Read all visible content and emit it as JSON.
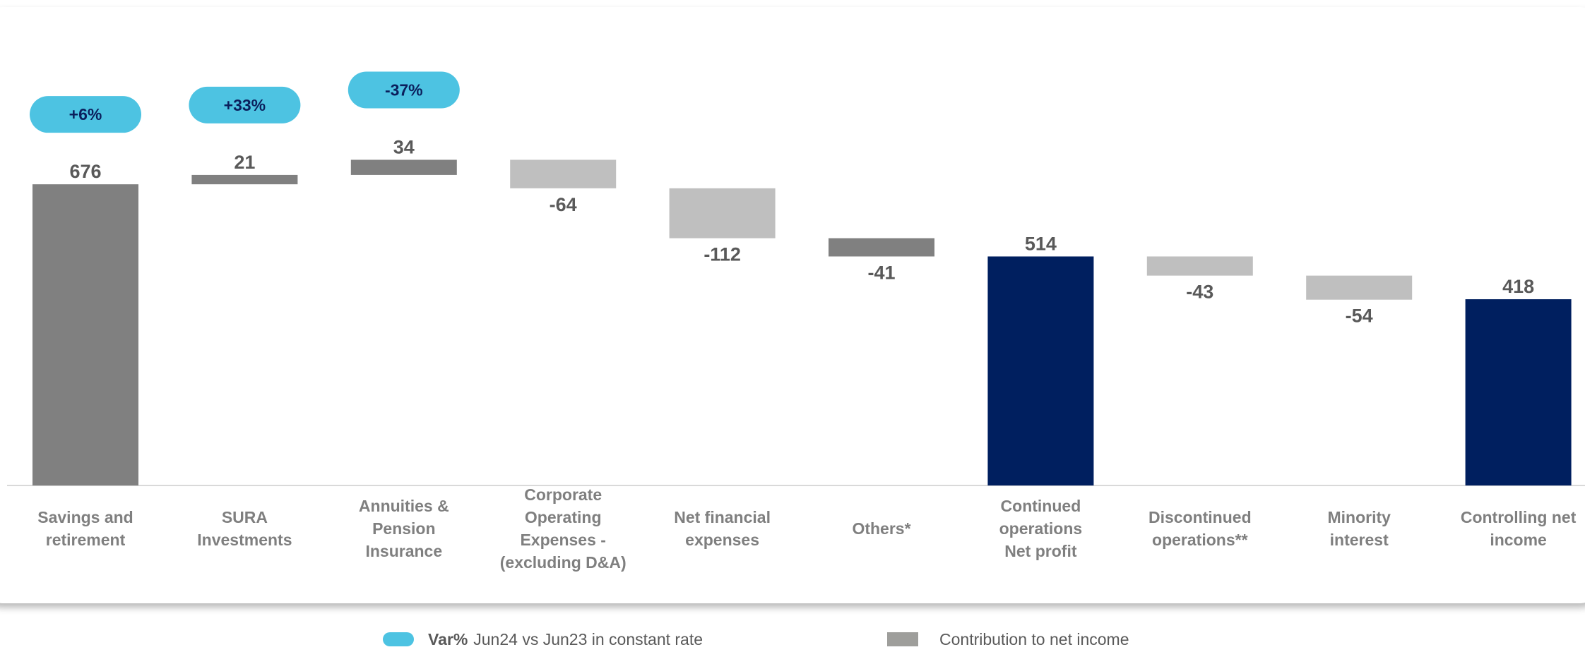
{
  "chart_data": {
    "type": "waterfall",
    "categories": [
      "Savings and retirement",
      "SURA Investments",
      "Annuities & Pension Insurance",
      "Corporate Operating Expenses - (excluding D&A)",
      "Net financial expenses",
      "Others*",
      "Continued operations Net profit",
      "Discontinued operations**",
      "Minority interest",
      "Controlling net income"
    ],
    "category_lines": [
      [
        "Savings and",
        "retirement"
      ],
      [
        "SURA",
        "Investments"
      ],
      [
        "Annuities &",
        "Pension",
        "Insurance"
      ],
      [
        "Corporate",
        "Operating",
        "Expenses -",
        "(excluding D&A)"
      ],
      [
        "Net financial",
        "expenses"
      ],
      [
        "Others*"
      ],
      [
        "Continued",
        "operations",
        "Net profit"
      ],
      [
        "Discontinued",
        "operations**"
      ],
      [
        "Minority",
        "interest"
      ],
      [
        "Controlling net",
        "income"
      ]
    ],
    "values": [
      676,
      21,
      34,
      -64,
      -112,
      -41,
      514,
      -43,
      -54,
      418
    ],
    "value_labels": [
      "676",
      "21",
      "34",
      "-64",
      "-112",
      "-41",
      "514",
      "-43",
      "-54",
      "418"
    ],
    "bar_kind": [
      "total",
      "delta",
      "delta",
      "delta",
      "delta",
      "delta",
      "total",
      "delta",
      "delta",
      "total"
    ],
    "variation_badges": [
      {
        "index": 0,
        "label": "+6%"
      },
      {
        "index": 1,
        "label": "+33%"
      },
      {
        "index": 2,
        "label": "-37%"
      }
    ],
    "legend": [
      {
        "bold": "Var%",
        "text": "Jun24 vs Jun23 in constant rate",
        "shape": "pill"
      },
      {
        "bold": "",
        "text": "Contribution to net income",
        "shape": "square"
      }
    ],
    "colors": {
      "savings": "#808080",
      "positive_delta": "#808080",
      "negative_light": "#bfbfbf",
      "others_dark": "#808080",
      "total_navy": "#001f5f",
      "badge": "#4dc3e2",
      "badge_text": "#0b1f5c",
      "value_text": "#595959",
      "category_text": "#7f7f7f",
      "legend_square": "#9e9e9b"
    },
    "bar_colors": [
      "#808080",
      "#808080",
      "#808080",
      "#bfbfbf",
      "#bfbfbf",
      "#808080",
      "#001f5f",
      "#bfbfbf",
      "#bfbfbf",
      "#001f5f"
    ],
    "ylim": [
      0,
      750
    ],
    "grid": false
  }
}
